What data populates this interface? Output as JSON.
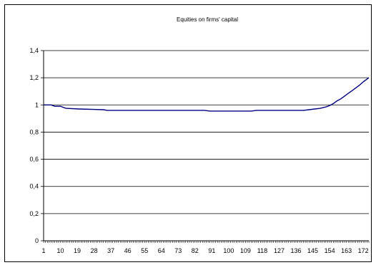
{
  "chart_data": {
    "type": "line",
    "title": "Equities on firms' capital",
    "xlabel": "",
    "ylabel": "",
    "x_tick_labels": [
      "1",
      "10",
      "19",
      "28",
      "37",
      "46",
      "55",
      "64",
      "73",
      "82",
      "91",
      "100",
      "109",
      "118",
      "127",
      "136",
      "145",
      "154",
      "163",
      "172"
    ],
    "y_tick_labels": [
      "0",
      "0,2",
      "0,4",
      "0,6",
      "0,8",
      "1",
      "1,2",
      "1,4"
    ],
    "xlim": [
      1,
      175
    ],
    "ylim": [
      0,
      1.4
    ],
    "grid": true,
    "legend": "none",
    "series": [
      {
        "color": "#000080",
        "x": [
          1,
          5,
          7,
          10,
          13,
          20,
          33,
          35,
          45,
          60,
          75,
          87,
          90,
          100,
          110,
          112,
          115,
          125,
          135,
          140,
          143,
          146,
          149,
          152,
          154,
          156,
          158,
          160,
          162,
          164,
          166,
          168,
          170,
          172,
          175
        ],
        "y": [
          1.0,
          1.0,
          0.99,
          0.99,
          0.975,
          0.97,
          0.965,
          0.96,
          0.96,
          0.96,
          0.96,
          0.96,
          0.955,
          0.955,
          0.955,
          0.955,
          0.96,
          0.96,
          0.96,
          0.96,
          0.965,
          0.97,
          0.975,
          0.985,
          0.995,
          1.01,
          1.03,
          1.045,
          1.065,
          1.085,
          1.105,
          1.125,
          1.145,
          1.17,
          1.2
        ]
      }
    ]
  }
}
